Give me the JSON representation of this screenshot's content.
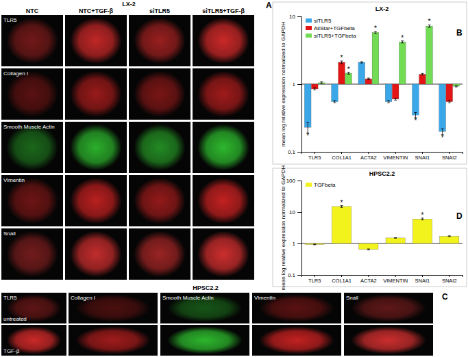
{
  "figure": {
    "panels": [
      {
        "label": "A",
        "title": "LX-2",
        "columns": [
          "NTC",
          "NTC+TGF-β",
          "siTLR5",
          "siTLR5+TGF-β"
        ],
        "rows": [
          {
            "label": "TLR5",
            "color": "#d42a2a"
          },
          {
            "label": "Collagen I",
            "color": "#a81c1c"
          },
          {
            "label": "Smooth Muscle Actin",
            "color": "#2fc02f"
          },
          {
            "label": "Vimentin",
            "color": "#cc2222"
          },
          {
            "label": "Snail",
            "color": "#d63030"
          }
        ]
      },
      {
        "label": "C",
        "title": "HPSC2.2",
        "columns": [
          {
            "label": "TLR5",
            "color": "#d42a2a"
          },
          {
            "label": "Collagen I",
            "color": "#a81c1c"
          },
          {
            "label": "Smooth Muscle Actin",
            "color": "#2fc02f"
          },
          {
            "label": "Vimentin",
            "color": "#cc2222"
          },
          {
            "label": "Snail",
            "color": "#d63030"
          }
        ],
        "rows": [
          "untreated",
          "TGF-β"
        ]
      }
    ]
  },
  "chart_data": [
    {
      "type": "bar",
      "panel_label": "B",
      "title": "LX-2",
      "categories": [
        "TLR5",
        "COL1A1",
        "ACTA2",
        "VIMENTIN",
        "SNAI1",
        "SNAI2"
      ],
      "series": [
        {
          "name": "siTLR5",
          "color": "#3aa8e8",
          "values": [
            0.23,
            0.55,
            2.1,
            0.55,
            0.35,
            0.2
          ],
          "errors": [
            0.04,
            0.02,
            0.05,
            0.02,
            0.03,
            0.02
          ],
          "annotations": [
            "*",
            null,
            null,
            null,
            "*",
            "*"
          ]
        },
        {
          "name": "AllStar+TGFbeta",
          "color": "#e31515",
          "values": [
            0.85,
            2.1,
            1.2,
            0.6,
            1.4,
            0.55
          ],
          "errors": [
            0.03,
            0.1,
            0.03,
            0.02,
            0.04,
            0.02
          ],
          "annotations": [
            null,
            "*",
            null,
            null,
            null,
            null
          ]
        },
        {
          "name": "siTLR5+TGFbeta",
          "color": "#72dc55",
          "values": [
            1.05,
            1.45,
            5.8,
            4.2,
            7.2,
            0.93
          ],
          "errors": [
            0.03,
            0.05,
            0.2,
            0.15,
            0.3,
            0.02
          ],
          "annotations": [
            null,
            "*",
            "*",
            "*",
            "*",
            null
          ]
        }
      ],
      "y_label": "mean log relative expression normalized to GAPDH",
      "log": "y",
      "ylim": [
        0.1,
        10
      ],
      "yticks": [
        0.1,
        1,
        10
      ],
      "baseline": 1,
      "grid": false,
      "legend": "top-left"
    },
    {
      "type": "bar",
      "panel_label": "D",
      "title": "HPSC2.2",
      "categories": [
        "TLR5",
        "COL1A1",
        "ACTA2",
        "VIMENTIN",
        "SNAI1",
        "SNAI2"
      ],
      "series": [
        {
          "name": "TGFbeta",
          "color": "#f2f21c",
          "values": [
            0.93,
            15,
            0.65,
            1.5,
            6,
            1.7
          ],
          "errors": [
            0.02,
            1,
            0.02,
            0.03,
            0.4,
            0.05
          ],
          "annotations": [
            null,
            "*",
            null,
            null,
            "*",
            null
          ]
        }
      ],
      "y_label": "mean log relative expression normalized to GAPDH",
      "log": "y",
      "ylim": [
        0.1,
        100
      ],
      "yticks": [
        0.1,
        1,
        10,
        100
      ],
      "baseline": 1,
      "grid": false,
      "legend": "top-left"
    }
  ]
}
